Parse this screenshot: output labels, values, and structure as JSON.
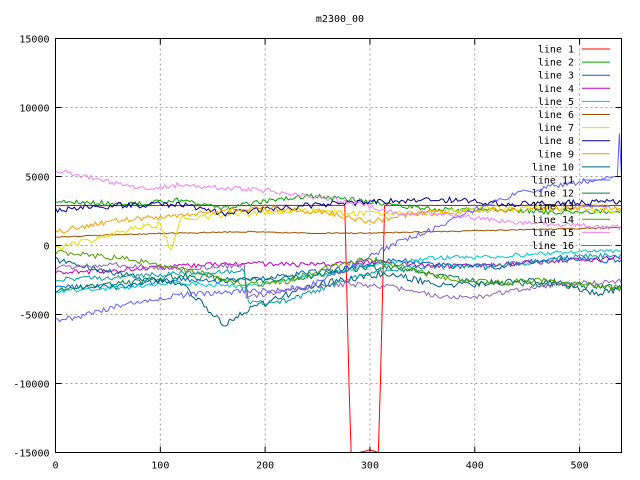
{
  "chart_data": {
    "type": "line",
    "title": "m2300_00",
    "xlabel": "",
    "ylabel": "",
    "xlim": [
      0,
      540
    ],
    "ylim": [
      -15000,
      15000
    ],
    "xticks": [
      0,
      100,
      200,
      300,
      400,
      500
    ],
    "yticks": [
      -15000,
      -10000,
      -5000,
      0,
      5000,
      10000,
      15000
    ],
    "grid": true,
    "legend_position": "top-right",
    "x_step": 2,
    "series": [
      {
        "name": "line 1",
        "color": "#ff0000",
        "knots": [
          [
            0,
            2900
          ],
          [
            60,
            2900
          ],
          [
            120,
            2900
          ],
          [
            200,
            2900
          ],
          [
            260,
            2900
          ],
          [
            276,
            2900
          ],
          [
            280,
            -10000
          ],
          [
            282,
            -15000
          ],
          [
            290,
            -15000
          ],
          [
            300,
            -14800
          ],
          [
            308,
            -15000
          ],
          [
            310,
            -10000
          ],
          [
            314,
            2900
          ],
          [
            360,
            2900
          ],
          [
            420,
            2900
          ],
          [
            480,
            2900
          ],
          [
            540,
            2900
          ]
        ],
        "noise": 10
      },
      {
        "name": "line 2",
        "color": "#00a000",
        "knots": [
          [
            0,
            3200
          ],
          [
            40,
            3100
          ],
          [
            80,
            3000
          ],
          [
            120,
            3300
          ],
          [
            160,
            2700
          ],
          [
            200,
            3200
          ],
          [
            240,
            3600
          ],
          [
            300,
            3200
          ],
          [
            360,
            2600
          ],
          [
            420,
            2600
          ],
          [
            480,
            2400
          ],
          [
            540,
            2500
          ]
        ],
        "noise": 180
      },
      {
        "name": "line 3",
        "color": "#0060d0",
        "knots": [
          [
            0,
            -3000
          ],
          [
            60,
            -3000
          ],
          [
            120,
            -2400
          ],
          [
            160,
            -2600
          ],
          [
            200,
            -2400
          ],
          [
            240,
            -2000
          ],
          [
            280,
            -1600
          ],
          [
            320,
            -1000
          ],
          [
            360,
            -1400
          ],
          [
            420,
            -1600
          ],
          [
            480,
            -900
          ],
          [
            540,
            -1100
          ]
        ],
        "noise": 200
      },
      {
        "name": "line 4",
        "color": "#c000c0",
        "knots": [
          [
            0,
            -2000
          ],
          [
            60,
            -1800
          ],
          [
            120,
            -1500
          ],
          [
            180,
            -1300
          ],
          [
            240,
            -1400
          ],
          [
            300,
            -1200
          ],
          [
            360,
            -1500
          ],
          [
            420,
            -1400
          ],
          [
            480,
            -1100
          ],
          [
            540,
            -900
          ]
        ],
        "noise": 180
      },
      {
        "name": "line 5",
        "color": "#00c8c8",
        "knots": [
          [
            0,
            -3300
          ],
          [
            60,
            -3100
          ],
          [
            120,
            -2700
          ],
          [
            180,
            -3000
          ],
          [
            240,
            -2300
          ],
          [
            300,
            -1500
          ],
          [
            360,
            -900
          ],
          [
            420,
            -800
          ],
          [
            480,
            -500
          ],
          [
            540,
            -400
          ]
        ],
        "noise": 150
      },
      {
        "name": "line 6",
        "color": "#a05000",
        "knots": [
          [
            0,
            600
          ],
          [
            60,
            800
          ],
          [
            120,
            900
          ],
          [
            180,
            1000
          ],
          [
            240,
            900
          ],
          [
            300,
            900
          ],
          [
            360,
            1000
          ],
          [
            420,
            1100
          ],
          [
            480,
            1200
          ],
          [
            540,
            1300
          ]
        ],
        "noise": 40
      },
      {
        "name": "line 7",
        "color": "#e0e000",
        "knots": [
          [
            0,
            -200
          ],
          [
            40,
            500
          ],
          [
            80,
            1300
          ],
          [
            100,
            1500
          ],
          [
            110,
            -400
          ],
          [
            120,
            2000
          ],
          [
            160,
            2200
          ],
          [
            200,
            2400
          ],
          [
            240,
            2500
          ],
          [
            300,
            2300
          ],
          [
            360,
            2400
          ],
          [
            420,
            2700
          ],
          [
            480,
            2700
          ],
          [
            540,
            2500
          ]
        ],
        "noise": 220
      },
      {
        "name": "line 8",
        "color": "#000080",
        "knots": [
          [
            0,
            2600
          ],
          [
            60,
            2900
          ],
          [
            120,
            3000
          ],
          [
            160,
            2300
          ],
          [
            200,
            2600
          ],
          [
            260,
            3000
          ],
          [
            320,
            3200
          ],
          [
            380,
            3300
          ],
          [
            440,
            3000
          ],
          [
            500,
            3100
          ],
          [
            540,
            3200
          ]
        ],
        "noise": 220
      },
      {
        "name": "line 9",
        "color": "#f0a000",
        "knots": [
          [
            0,
            1000
          ],
          [
            60,
            1800
          ],
          [
            120,
            2200
          ],
          [
            160,
            2500
          ],
          [
            200,
            2700
          ],
          [
            260,
            2400
          ],
          [
            300,
            1700
          ],
          [
            340,
            2300
          ],
          [
            400,
            2500
          ],
          [
            460,
            2600
          ],
          [
            520,
            2800
          ],
          [
            540,
            2600
          ]
        ],
        "noise": 200
      },
      {
        "name": "line 10",
        "color": "#006080",
        "knots": [
          [
            0,
            -1000
          ],
          [
            60,
            -2000
          ],
          [
            120,
            -2800
          ],
          [
            140,
            -4200
          ],
          [
            160,
            -5800
          ],
          [
            180,
            -4800
          ],
          [
            200,
            -4200
          ],
          [
            240,
            -3000
          ],
          [
            280,
            -2400
          ],
          [
            320,
            -2000
          ],
          [
            360,
            -2800
          ],
          [
            400,
            -2800
          ],
          [
            440,
            -2600
          ],
          [
            480,
            -2700
          ],
          [
            520,
            -3500
          ],
          [
            540,
            -3000
          ]
        ],
        "noise": 250
      },
      {
        "name": "line 11",
        "color": "#6060ff",
        "knots": [
          [
            0,
            -5500
          ],
          [
            40,
            -4800
          ],
          [
            80,
            -4000
          ],
          [
            120,
            -3600
          ],
          [
            180,
            -3300
          ],
          [
            200,
            -3300
          ],
          [
            240,
            -3000
          ],
          [
            280,
            -1600
          ],
          [
            320,
            0
          ],
          [
            360,
            1200
          ],
          [
            400,
            2600
          ],
          [
            440,
            3800
          ],
          [
            480,
            4400
          ],
          [
            520,
            4800
          ],
          [
            536,
            5000
          ],
          [
            538,
            8000
          ],
          [
            540,
            5000
          ]
        ],
        "noise": 200
      },
      {
        "name": "line 12",
        "color": "#008040",
        "knots": [
          [
            0,
            -3200
          ],
          [
            60,
            -2800
          ],
          [
            120,
            -2200
          ],
          [
            180,
            -2500
          ],
          [
            240,
            -2300
          ],
          [
            300,
            -1500
          ],
          [
            340,
            -1800
          ],
          [
            380,
            -2400
          ],
          [
            420,
            -2700
          ],
          [
            460,
            -2800
          ],
          [
            500,
            -2900
          ],
          [
            540,
            -3100
          ]
        ],
        "noise": 220
      },
      {
        "name": "line 13",
        "color": "#9060c0",
        "knots": [
          [
            0,
            -1600
          ],
          [
            60,
            -1400
          ],
          [
            120,
            -1700
          ],
          [
            160,
            -1500
          ],
          [
            180,
            -1400
          ],
          [
            182,
            -3800
          ],
          [
            200,
            -3500
          ],
          [
            240,
            -3000
          ],
          [
            280,
            -2800
          ],
          [
            320,
            -3000
          ],
          [
            360,
            -3600
          ],
          [
            400,
            -3800
          ],
          [
            440,
            -3200
          ],
          [
            480,
            -2800
          ],
          [
            540,
            -2600
          ]
        ],
        "noise": 180
      },
      {
        "name": "line 14",
        "color": "#50a000",
        "knots": [
          [
            0,
            -500
          ],
          [
            60,
            -900
          ],
          [
            100,
            -1400
          ],
          [
            140,
            -2000
          ],
          [
            180,
            -2900
          ],
          [
            220,
            -2600
          ],
          [
            260,
            -1600
          ],
          [
            300,
            -900
          ],
          [
            340,
            -1800
          ],
          [
            380,
            -2500
          ],
          [
            420,
            -2700
          ],
          [
            460,
            -2500
          ],
          [
            500,
            -2800
          ],
          [
            540,
            -3100
          ]
        ],
        "noise": 200
      },
      {
        "name": "line 15",
        "color": "#f080f0",
        "knots": [
          [
            0,
            5500
          ],
          [
            40,
            4800
          ],
          [
            80,
            4100
          ],
          [
            120,
            4400
          ],
          [
            160,
            4200
          ],
          [
            200,
            4000
          ],
          [
            240,
            3600
          ],
          [
            280,
            3200
          ],
          [
            320,
            2400
          ],
          [
            360,
            2300
          ],
          [
            400,
            2000
          ],
          [
            440,
            1700
          ],
          [
            480,
            1500
          ],
          [
            540,
            1300
          ]
        ],
        "noise": 180
      },
      {
        "name": "line 16",
        "color": "#00a0a0",
        "knots": [
          [
            0,
            -2500
          ],
          [
            60,
            -2300
          ],
          [
            120,
            -2000
          ],
          [
            160,
            -1900
          ],
          [
            180,
            -1800
          ],
          [
            184,
            -4200
          ],
          [
            220,
            -4000
          ],
          [
            260,
            -3000
          ],
          [
            300,
            -2000
          ],
          [
            340,
            -1600
          ],
          [
            380,
            -1500
          ],
          [
            420,
            -1400
          ],
          [
            460,
            -1200
          ],
          [
            500,
            -800
          ],
          [
            540,
            -700
          ]
        ],
        "noise": 180
      }
    ]
  }
}
